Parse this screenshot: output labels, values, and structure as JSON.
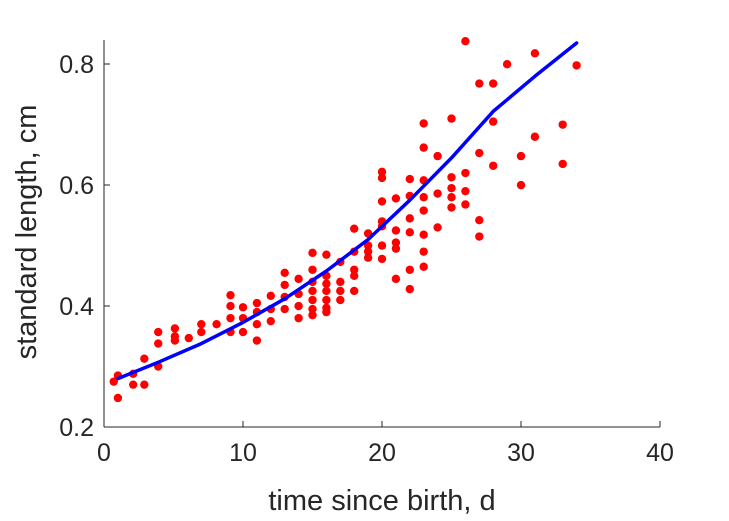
{
  "chart_data": {
    "type": "scatter",
    "title": "",
    "xlabel": "time since birth, d",
    "ylabel": "standard length, cm",
    "xlim": [
      0,
      40
    ],
    "ylim": [
      0.2,
      0.84
    ],
    "x_ticks": [
      0,
      10,
      20,
      30,
      40
    ],
    "x_tick_labels": [
      "0",
      "10",
      "20",
      "30",
      "40"
    ],
    "y_ticks": [
      0.2,
      0.4,
      0.6,
      0.8
    ],
    "y_tick_labels": [
      "0.2",
      "0.4",
      "0.6",
      "0.8"
    ],
    "grid": false,
    "legend": "none",
    "colors": {
      "points": "#ff0000",
      "fit_line": "#0000ff",
      "axis": "#262626"
    },
    "series": [
      {
        "kind": "scatter",
        "points": [
          [
            0.7,
            0.275
          ],
          [
            1,
            0.285
          ],
          [
            1,
            0.248
          ],
          [
            2.1,
            0.288
          ],
          [
            2.1,
            0.27
          ],
          [
            2.9,
            0.313
          ],
          [
            2.9,
            0.27
          ],
          [
            3.9,
            0.357
          ],
          [
            3.9,
            0.338
          ],
          [
            3.9,
            0.3
          ],
          [
            5.1,
            0.363
          ],
          [
            5.1,
            0.35
          ],
          [
            5.1,
            0.343
          ],
          [
            6.1,
            0.347
          ],
          [
            7,
            0.37
          ],
          [
            7,
            0.357
          ],
          [
            8.1,
            0.37
          ],
          [
            9.1,
            0.418
          ],
          [
            9.1,
            0.4
          ],
          [
            9.1,
            0.38
          ],
          [
            9.1,
            0.357
          ],
          [
            10,
            0.398
          ],
          [
            10,
            0.38
          ],
          [
            10,
            0.357
          ],
          [
            11,
            0.405
          ],
          [
            11,
            0.39
          ],
          [
            11,
            0.37
          ],
          [
            11,
            0.343
          ],
          [
            12,
            0.417
          ],
          [
            12,
            0.395
          ],
          [
            12,
            0.375
          ],
          [
            13,
            0.455
          ],
          [
            13,
            0.435
          ],
          [
            13,
            0.415
          ],
          [
            13,
            0.395
          ],
          [
            14,
            0.445
          ],
          [
            14,
            0.42
          ],
          [
            14,
            0.4
          ],
          [
            14,
            0.38
          ],
          [
            15,
            0.488
          ],
          [
            15,
            0.46
          ],
          [
            15,
            0.44
          ],
          [
            15,
            0.425
          ],
          [
            15,
            0.41
          ],
          [
            15,
            0.395
          ],
          [
            15,
            0.385
          ],
          [
            16,
            0.485
          ],
          [
            16,
            0.45
          ],
          [
            16,
            0.437
          ],
          [
            16,
            0.425
          ],
          [
            16,
            0.41
          ],
          [
            16,
            0.397
          ],
          [
            16,
            0.39
          ],
          [
            17,
            0.473
          ],
          [
            17,
            0.44
          ],
          [
            17,
            0.425
          ],
          [
            17,
            0.41
          ],
          [
            18,
            0.528
          ],
          [
            18,
            0.49
          ],
          [
            18,
            0.46
          ],
          [
            18,
            0.45
          ],
          [
            18,
            0.425
          ],
          [
            19,
            0.52
          ],
          [
            19,
            0.5
          ],
          [
            19,
            0.49
          ],
          [
            19,
            0.48
          ],
          [
            20,
            0.622
          ],
          [
            20,
            0.612
          ],
          [
            20,
            0.573
          ],
          [
            20,
            0.54
          ],
          [
            20,
            0.532
          ],
          [
            20,
            0.5
          ],
          [
            20,
            0.478
          ],
          [
            21,
            0.578
          ],
          [
            21,
            0.525
          ],
          [
            21,
            0.505
          ],
          [
            21,
            0.495
          ],
          [
            21,
            0.445
          ],
          [
            22,
            0.61
          ],
          [
            22,
            0.582
          ],
          [
            22,
            0.545
          ],
          [
            22,
            0.522
          ],
          [
            22,
            0.46
          ],
          [
            22,
            0.428
          ],
          [
            23,
            0.702
          ],
          [
            23,
            0.662
          ],
          [
            23,
            0.608
          ],
          [
            23,
            0.58
          ],
          [
            23,
            0.558
          ],
          [
            23,
            0.518
          ],
          [
            23,
            0.49
          ],
          [
            23,
            0.465
          ],
          [
            24,
            0.648
          ],
          [
            24,
            0.586
          ],
          [
            24,
            0.53
          ],
          [
            25,
            0.71
          ],
          [
            25,
            0.613
          ],
          [
            25,
            0.595
          ],
          [
            25,
            0.58
          ],
          [
            25,
            0.563
          ],
          [
            26,
            0.838
          ],
          [
            26,
            0.62
          ],
          [
            26,
            0.59
          ],
          [
            26,
            0.568
          ],
          [
            27,
            0.768
          ],
          [
            27,
            0.653
          ],
          [
            27,
            0.542
          ],
          [
            27,
            0.515
          ],
          [
            28,
            0.768
          ],
          [
            28,
            0.705
          ],
          [
            28,
            0.632
          ],
          [
            29,
            0.8
          ],
          [
            30,
            0.648
          ],
          [
            30,
            0.6
          ],
          [
            31,
            0.818
          ],
          [
            31,
            0.68
          ],
          [
            33,
            0.7
          ],
          [
            33,
            0.635
          ],
          [
            34,
            0.798
          ]
        ]
      },
      {
        "kind": "line",
        "points": [
          [
            1,
            0.28
          ],
          [
            4,
            0.308
          ],
          [
            7,
            0.338
          ],
          [
            10,
            0.373
          ],
          [
            13,
            0.412
          ],
          [
            16,
            0.458
          ],
          [
            19,
            0.51
          ],
          [
            22,
            0.575
          ],
          [
            25,
            0.645
          ],
          [
            28,
            0.722
          ],
          [
            31,
            0.78
          ],
          [
            34,
            0.835
          ]
        ]
      }
    ]
  }
}
